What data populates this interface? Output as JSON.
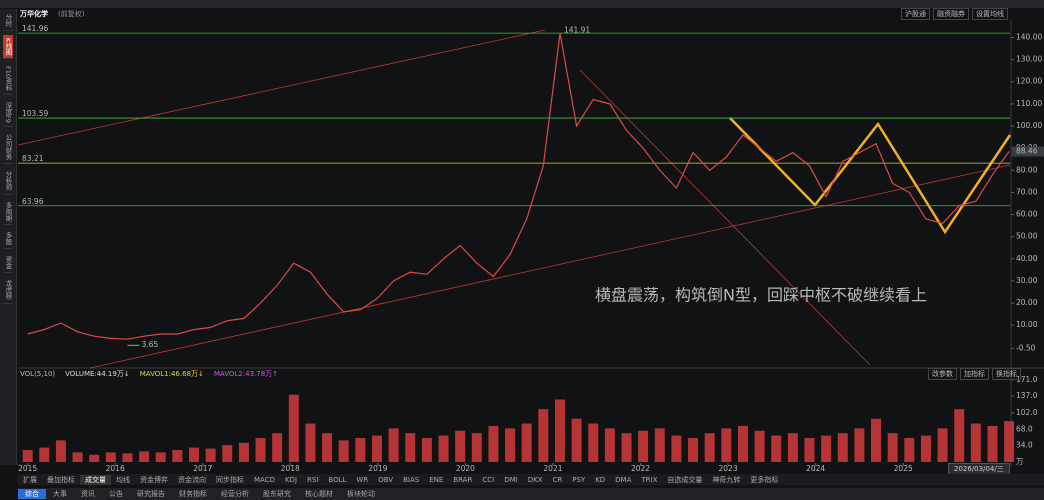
{
  "app": {
    "stock_name": "万华化学",
    "adjust": "(前复权)",
    "top_buttons": [
      "沪股通",
      "融资融券",
      "设置均线"
    ],
    "sidebar": [
      "分时",
      "K线图",
      "F10资料",
      "深度F9",
      "公司财务",
      "分析师",
      "多周期",
      "多股",
      "资金",
      "龙虎榜"
    ],
    "vol_buttons": [
      "改参数",
      "加指标",
      "换指标"
    ],
    "indicator_tabs": [
      "扩展",
      "叠加指标",
      "成交量",
      "均线",
      "资金博弈",
      "资金流向",
      "同步指标",
      "MACD",
      "KDJ",
      "RSI",
      "BOLL",
      "WR",
      "OBV",
      "BIAS",
      "ENE",
      "BRAR",
      "CCI",
      "DMI",
      "DKX",
      "CR",
      "PSY",
      "KD",
      "DMA",
      "TRIX",
      "自选成交量",
      "神奇九转",
      "更多指标"
    ],
    "bottom_tabs": [
      "综合",
      "大事",
      "资讯",
      "公告",
      "研究报告",
      "财务指标",
      "经营分析",
      "股东研究",
      "核心题材",
      "板块轮动"
    ],
    "cursor_date": "2026/03/04/三"
  },
  "chart_data": [
    {
      "type": "line",
      "color": "#e04848",
      "annotation": "横盘震荡，构筑倒N型，回踩中枢不破继续看上",
      "x": [
        2015.0,
        2015.19,
        2015.38,
        2015.57,
        2015.76,
        2015.95,
        2016.14,
        2016.33,
        2016.52,
        2016.71,
        2016.9,
        2017.09,
        2017.28,
        2017.47,
        2017.66,
        2017.85,
        2018.04,
        2018.23,
        2018.42,
        2018.61,
        2018.8,
        2018.99,
        2019.18,
        2019.37,
        2019.56,
        2019.75,
        2019.94,
        2020.13,
        2020.32,
        2020.51,
        2020.7,
        2020.89,
        2021.08,
        2021.27,
        2021.46,
        2021.65,
        2021.84,
        2022.03,
        2022.22,
        2022.41,
        2022.6,
        2022.79,
        2022.98,
        2023.17,
        2023.36,
        2023.55,
        2023.74,
        2023.93,
        2024.12,
        2024.31,
        2024.5,
        2024.69,
        2024.88,
        2025.07,
        2025.26,
        2025.45,
        2025.64,
        2025.83,
        2026.02,
        2026.21
      ],
      "values": [
        6,
        8,
        11,
        7,
        5,
        4,
        3.65,
        5,
        6,
        6,
        8,
        9,
        12,
        13,
        20,
        28,
        38,
        34,
        24,
        16,
        17,
        22,
        30,
        34,
        33,
        40,
        46,
        38,
        32,
        42,
        58,
        82,
        141.91,
        100,
        112,
        110,
        98,
        90,
        80,
        72,
        88,
        80,
        86,
        96,
        90,
        84,
        88,
        82,
        68,
        84,
        88,
        92,
        74,
        70,
        58,
        56,
        64,
        66,
        78,
        88.46
      ],
      "levels": [
        {
          "value": 141.96,
          "color": "#3fbf3f"
        },
        {
          "value": 103.59,
          "color": "#3fbf3f"
        },
        {
          "value": 83.21,
          "color": "#d8d040"
        },
        {
          "value": 63.96,
          "color": "#3fbf3f"
        }
      ],
      "xlim": [
        2014.89,
        2026.22
      ],
      "xticks": [
        2015,
        2016,
        2017,
        2018,
        2019,
        2020,
        2021,
        2022,
        2023,
        2024,
        2025
      ],
      "ylim": [
        -8,
        147
      ],
      "yticks": [
        {
          "value": 140,
          "label": "140.00"
        },
        {
          "value": 130,
          "label": "130.00"
        },
        {
          "value": 120,
          "label": "120.00"
        },
        {
          "value": 110,
          "label": "110.00"
        },
        {
          "value": 100,
          "label": "100.00"
        },
        {
          "value": 90,
          "label": "90.00"
        },
        {
          "value": 80,
          "label": "80.00"
        },
        {
          "value": 70,
          "label": "70.00"
        },
        {
          "value": 60,
          "label": "60.00"
        },
        {
          "value": 50,
          "label": "50.00"
        },
        {
          "value": 40,
          "label": "40.00"
        },
        {
          "value": 30,
          "label": "30.00"
        },
        {
          "value": 20,
          "label": "20.00"
        },
        {
          "value": 10,
          "label": "10.00"
        },
        {
          "value": -0.5,
          "label": "-0.50"
        }
      ]
    },
    {
      "type": "bar",
      "color": "#d23c3c",
      "title": "VOL(5,10)",
      "indicators": [
        {
          "label": "VOLUME:44.19万↓",
          "color": "#dddddd"
        },
        {
          "label": "MAVOL1:46.68万↓",
          "color": "#e8d23a"
        },
        {
          "label": "MAVOL2:43.78万↑",
          "color": "#e050e0"
        }
      ],
      "unit": "万",
      "x": [
        2015.0,
        2015.19,
        2015.38,
        2015.57,
        2015.76,
        2015.95,
        2016.14,
        2016.33,
        2016.52,
        2016.71,
        2016.9,
        2017.09,
        2017.28,
        2017.47,
        2017.66,
        2017.85,
        2018.04,
        2018.23,
        2018.42,
        2018.61,
        2018.8,
        2018.99,
        2019.18,
        2019.37,
        2019.56,
        2019.75,
        2019.94,
        2020.13,
        2020.32,
        2020.51,
        2020.7,
        2020.89,
        2021.08,
        2021.27,
        2021.46,
        2021.65,
        2021.84,
        2022.03,
        2022.22,
        2022.41,
        2022.6,
        2022.79,
        2022.98,
        2023.17,
        2023.36,
        2023.55,
        2023.74,
        2023.93,
        2024.12,
        2024.31,
        2024.5,
        2024.69,
        2024.88,
        2025.07,
        2025.26,
        2025.45,
        2025.64,
        2025.83,
        2026.02,
        2026.21
      ],
      "values": [
        25,
        30,
        45,
        20,
        15,
        20,
        18,
        22,
        20,
        25,
        30,
        28,
        35,
        40,
        50,
        60,
        140,
        80,
        60,
        45,
        50,
        55,
        70,
        60,
        50,
        55,
        65,
        60,
        75,
        70,
        80,
        110,
        130,
        90,
        80,
        70,
        60,
        65,
        70,
        55,
        50,
        60,
        70,
        75,
        65,
        55,
        60,
        50,
        55,
        60,
        70,
        90,
        60,
        50,
        55,
        70,
        110,
        80,
        75,
        85
      ],
      "xlim": [
        2014.89,
        2026.22
      ],
      "ylim": [
        0,
        181
      ],
      "yticks": [
        {
          "value": 171,
          "label": "171.0"
        },
        {
          "value": 137,
          "label": "137.0"
        },
        {
          "value": 102,
          "label": "102.0"
        },
        {
          "value": 68,
          "label": "68.0"
        },
        {
          "value": 34,
          "label": "34.0"
        }
      ]
    }
  ]
}
